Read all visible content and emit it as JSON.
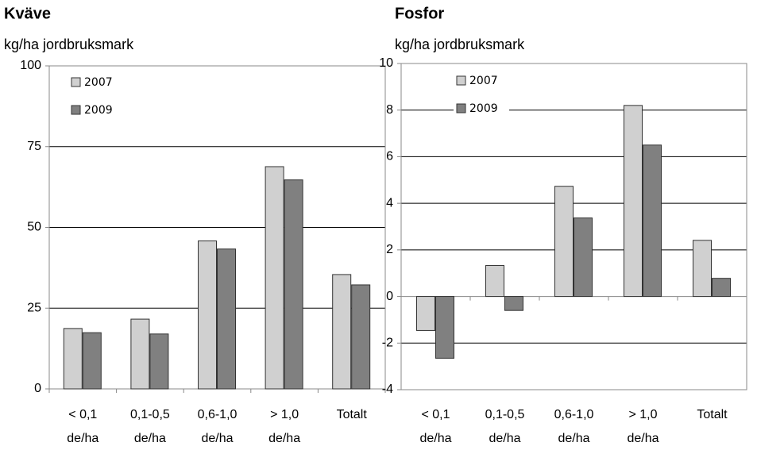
{
  "chart_data": [
    {
      "type": "bar",
      "title": "Kväve",
      "subtitle": "kg/ha jordbruksmark",
      "categories": [
        [
          "< 0,1",
          "de/ha"
        ],
        [
          "0,1-0,5",
          "de/ha"
        ],
        [
          "0,6-1,0",
          "de/ha"
        ],
        [
          "> 1,0",
          "de/ha"
        ],
        [
          "Totalt"
        ]
      ],
      "series": [
        {
          "name": "2007",
          "color": "#d0d0d0",
          "values": [
            18.7,
            21.6,
            45.8,
            68.8,
            35.4
          ]
        },
        {
          "name": "2009",
          "color": "#808080",
          "values": [
            17.4,
            17.0,
            43.3,
            64.7,
            32.2
          ]
        }
      ],
      "ylim": [
        0,
        100
      ],
      "yticks": [
        0,
        25,
        50,
        75,
        100
      ],
      "grid": true,
      "legend": "top-left"
    },
    {
      "type": "bar",
      "title": "Fosfor",
      "subtitle": "kg/ha jordbruksmark",
      "categories": [
        [
          "< 0,1",
          "de/ha"
        ],
        [
          "0,1-0,5",
          "de/ha"
        ],
        [
          "0,6-1,0",
          "de/ha"
        ],
        [
          "> 1,0",
          "de/ha"
        ],
        [
          "Totalt"
        ]
      ],
      "series": [
        {
          "name": "2007",
          "color": "#d0d0d0",
          "values": [
            -1.46,
            1.33,
            4.73,
            8.2,
            2.41
          ]
        },
        {
          "name": "2009",
          "color": "#808080",
          "values": [
            -2.65,
            -0.6,
            3.37,
            6.5,
            0.78
          ]
        }
      ],
      "ylim": [
        -4,
        10
      ],
      "yticks": [
        -4,
        -2,
        0,
        2,
        4,
        6,
        8,
        10
      ],
      "grid": true,
      "legend": "top-left"
    }
  ]
}
